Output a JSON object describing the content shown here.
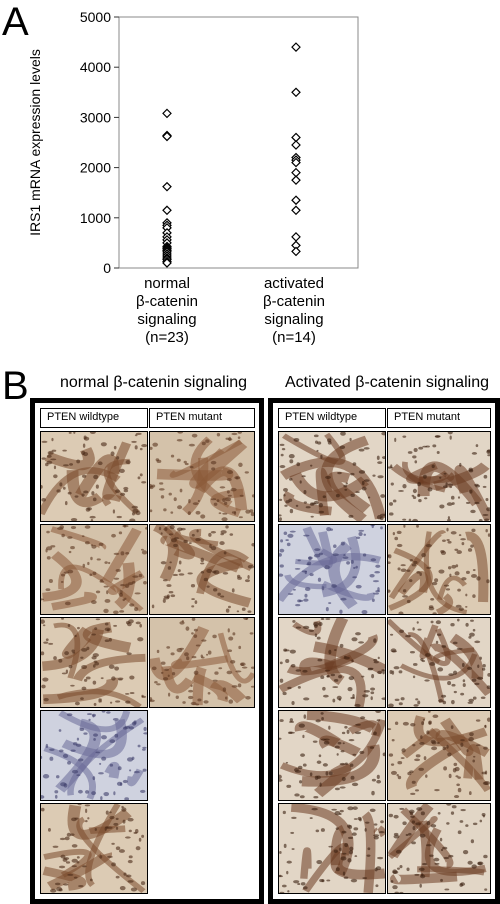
{
  "panel_a": {
    "letter": "A",
    "chart_data": {
      "type": "scatter",
      "title": "",
      "xlabel": "",
      "ylabel": "IRS1 mRNA expression levels",
      "ylim": [
        0,
        5000
      ],
      "yticks": [
        "0",
        "1000",
        "2000",
        "3000",
        "4000",
        "5000"
      ],
      "grid": false,
      "marker": "open-diamond",
      "categories": [
        {
          "lines": [
            "normal",
            "β-catenin",
            "signaling",
            "(n=23)"
          ]
        },
        {
          "lines": [
            "activated",
            "β-catenin",
            "signaling",
            "(n=14)"
          ]
        }
      ],
      "series": [
        {
          "category": 0,
          "values": [
            3080,
            2640,
            2620,
            1620,
            1150,
            900,
            850,
            800,
            700,
            620,
            560,
            500,
            430,
            400,
            380,
            350,
            320,
            280,
            240,
            200,
            170,
            130,
            100
          ]
        },
        {
          "category": 1,
          "values": [
            4400,
            3500,
            2600,
            2450,
            2200,
            2150,
            2100,
            1900,
            1750,
            1350,
            1150,
            620,
            450,
            330
          ]
        }
      ]
    }
  },
  "panel_b": {
    "letter": "B",
    "left_title": "normal β-catenin signaling",
    "right_title": "Activated β-catenin signaling",
    "col_wildtype": "PTEN wildtype",
    "col_mutant": "PTEN mutant",
    "left_wildtype_images": 5,
    "left_mutant_images": 3,
    "right_wildtype_images": 5,
    "right_mutant_images": 5
  }
}
